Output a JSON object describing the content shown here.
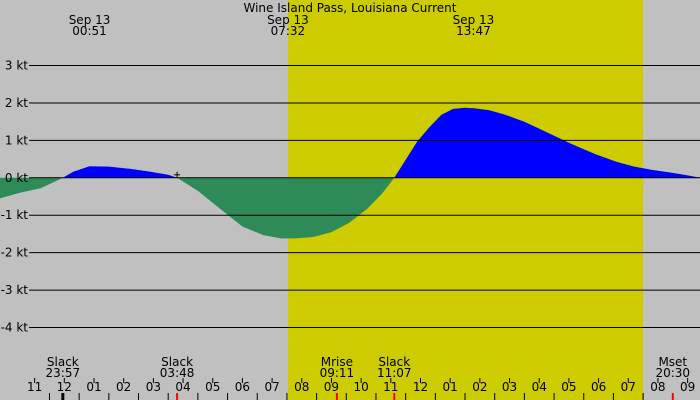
{
  "chart_data": {
    "type": "area",
    "title": "Wine Island Pass, Louisiana Current",
    "units": "kt",
    "y_ticks": [
      "3 kt",
      "2 kt",
      "1 kt",
      "0 kt",
      "-1 kt",
      "-2 kt",
      "-3 kt",
      "-4 kt"
    ],
    "y_tick_values": [
      3,
      2,
      1,
      0,
      -1,
      -2,
      -3,
      -4
    ],
    "ylim": [
      -4.6,
      4.75
    ],
    "xlim": [
      -2.1667,
      21.4167
    ],
    "x_units": "hours from Sep 13 00:00",
    "hour_labels": [
      "11",
      "12",
      "01",
      "02",
      "03",
      "04",
      "05",
      "06",
      "07",
      "08",
      "09",
      "10",
      "11",
      "12",
      "01",
      "02",
      "03",
      "04",
      "05",
      "06",
      "07",
      "08",
      "09"
    ],
    "hour_label_start": -1,
    "daylight": {
      "start": 7.5333,
      "end": 19.5
    },
    "top_annotations": [
      {
        "date": "Sep 13",
        "time": "00:51",
        "hour": 0.85
      },
      {
        "date": "Sep 13",
        "time": "07:32",
        "hour": 7.5333
      },
      {
        "date": "Sep 13",
        "time": "13:47",
        "hour": 13.7833
      }
    ],
    "bottom_events": [
      {
        "label": "Slack",
        "time": "23:57",
        "hour": -0.05
      },
      {
        "label": "Slack",
        "time": "03:48",
        "hour": 3.8
      },
      {
        "label": "Mrise",
        "time": "09:11",
        "hour": 9.1833
      },
      {
        "label": "Slack",
        "time": "11:07",
        "hour": 11.1167
      },
      {
        "label": "Mset",
        "time": "20:30",
        "hour": 20.5
      }
    ],
    "event_markers": [
      {
        "hour": -0.05,
        "color": "#000000"
      },
      {
        "hour": 3.8,
        "color": "#ff0000"
      },
      {
        "hour": 9.1833,
        "color": "#ff0000"
      },
      {
        "hour": 11.1167,
        "color": "#ff0000"
      },
      {
        "hour": 20.5,
        "color": "#ff0000"
      }
    ],
    "series": [
      {
        "x": [
          -2.1667,
          -1.5,
          -0.8,
          -0.4,
          -0.05,
          0.3,
          0.85,
          1.5,
          2.2,
          2.9,
          3.5,
          3.8,
          4.5,
          5.3,
          6.0,
          6.7,
          7.3,
          7.8,
          8.4,
          9.0,
          9.6,
          10.2,
          10.7,
          11.1167,
          11.5,
          11.9,
          12.3,
          12.7,
          13.1,
          13.5,
          13.8,
          14.3,
          14.8,
          15.5,
          16.3,
          17.1,
          17.9,
          18.6,
          19.2,
          19.8,
          20.5,
          21.1,
          21.4167
        ],
        "values": [
          -0.55,
          -0.4,
          -0.28,
          -0.13,
          0.0,
          0.16,
          0.31,
          0.3,
          0.24,
          0.16,
          0.08,
          0.0,
          -0.35,
          -0.86,
          -1.3,
          -1.53,
          -1.62,
          -1.62,
          -1.58,
          -1.45,
          -1.2,
          -0.83,
          -0.43,
          0.0,
          0.48,
          0.98,
          1.35,
          1.68,
          1.84,
          1.87,
          1.86,
          1.81,
          1.7,
          1.5,
          1.2,
          0.9,
          0.63,
          0.43,
          0.3,
          0.21,
          0.13,
          0.05,
          0.0
        ],
        "positive_color": "#0000ff",
        "negative_color": "#2e8b57"
      }
    ],
    "colors": {
      "night": "#c0c0c0",
      "day": "#cccc00",
      "grid": "#000000"
    },
    "grid": true
  }
}
